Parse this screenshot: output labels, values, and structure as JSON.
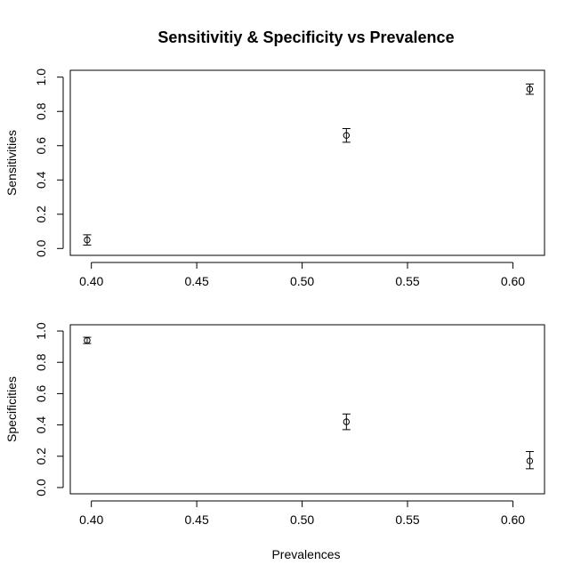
{
  "chart_data": {
    "title": "Sensitivitiy & Specificity vs Prevalence",
    "xlabel": "Prevalences",
    "colors": {
      "ink": "#000000",
      "background": "#ffffff"
    },
    "panels": [
      {
        "type": "scatter",
        "name": "sensitivity-panel",
        "ylabel": "Sensitivities",
        "xlim": [
          0.39,
          0.615
        ],
        "ylim": [
          -0.04,
          1.04
        ],
        "x_ticks": [
          0.4,
          0.45,
          0.5,
          0.55,
          0.6
        ],
        "x_tick_labels": [
          "0.40",
          "0.45",
          "0.50",
          "0.55",
          "0.60"
        ],
        "y_ticks": [
          0.0,
          0.2,
          0.4,
          0.6,
          0.8,
          1.0
        ],
        "y_tick_labels": [
          "0.0",
          "0.2",
          "0.4",
          "0.6",
          "0.8",
          "1.0"
        ],
        "points": [
          {
            "x": 0.398,
            "y": 0.05,
            "lower": 0.02,
            "upper": 0.08
          },
          {
            "x": 0.521,
            "y": 0.66,
            "lower": 0.62,
            "upper": 0.7
          },
          {
            "x": 0.608,
            "y": 0.93,
            "lower": 0.9,
            "upper": 0.96
          }
        ]
      },
      {
        "type": "scatter",
        "name": "specificity-panel",
        "ylabel": "Specificities",
        "xlim": [
          0.39,
          0.615
        ],
        "ylim": [
          -0.04,
          1.04
        ],
        "x_ticks": [
          0.4,
          0.45,
          0.5,
          0.55,
          0.6
        ],
        "x_tick_labels": [
          "0.40",
          "0.45",
          "0.50",
          "0.55",
          "0.60"
        ],
        "y_ticks": [
          0.0,
          0.2,
          0.4,
          0.6,
          0.8,
          1.0
        ],
        "y_tick_labels": [
          "0.0",
          "0.2",
          "0.4",
          "0.6",
          "0.8",
          "1.0"
        ],
        "points": [
          {
            "x": 0.398,
            "y": 0.94,
            "lower": 0.92,
            "upper": 0.96
          },
          {
            "x": 0.521,
            "y": 0.42,
            "lower": 0.37,
            "upper": 0.47
          },
          {
            "x": 0.608,
            "y": 0.17,
            "lower": 0.12,
            "upper": 0.23
          }
        ]
      }
    ]
  }
}
